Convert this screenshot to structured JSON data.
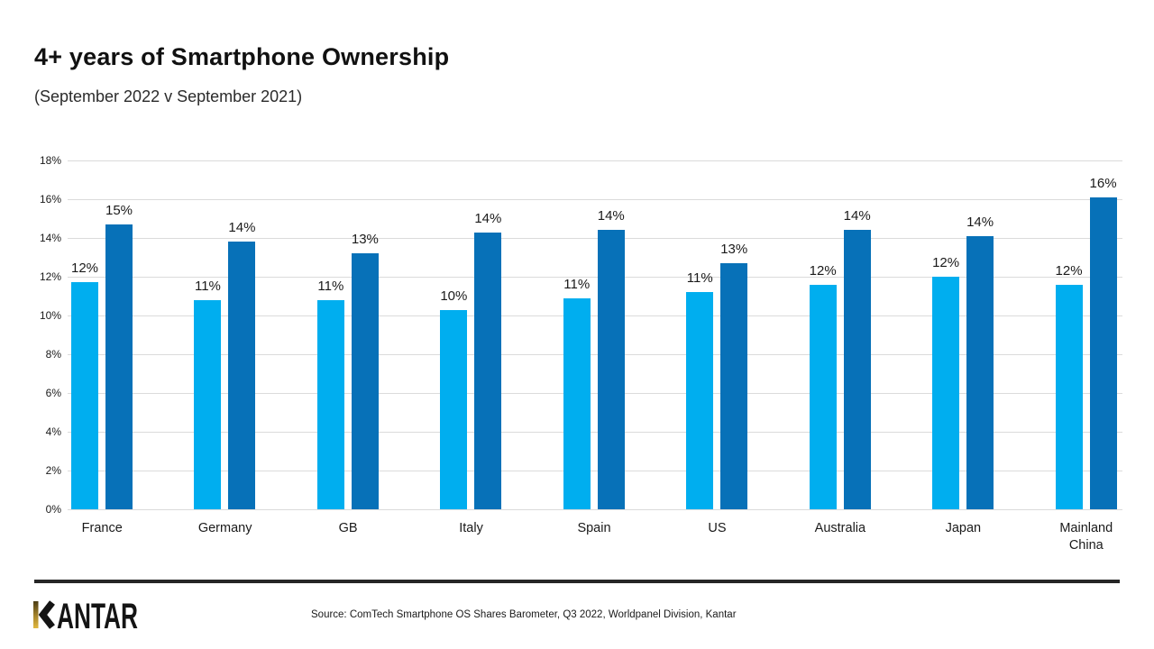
{
  "header": {
    "title": "4+ years of Smartphone Ownership",
    "subtitle": "(September 2022 v September 2021)"
  },
  "footer": {
    "logo_text": "KANTAR",
    "source": "Source: ComTech Smartphone OS Shares Barometer, Q3 2022, Worldpanel Division, Kantar"
  },
  "colors": {
    "light_blue": "#00AEEF",
    "dark_blue": "#0771B8",
    "gridline": "#DBDBDB",
    "text": "#1A1A1A",
    "divider": "#262626",
    "logo_gold": "#C7A13B"
  },
  "chart_data": {
    "type": "bar",
    "title": "4+ years of Smartphone Ownership",
    "subtitle": "(September 2022 v September 2021)",
    "categories": [
      "France",
      "Germany",
      "GB",
      "Italy",
      "Spain",
      "US",
      "Australia",
      "Japan",
      "Mainland\nChina"
    ],
    "series": [
      {
        "id": "light-blue-bars",
        "color": "#00AEEF",
        "labels": [
          "12%",
          "11%",
          "11%",
          "10%",
          "11%",
          "11%",
          "12%",
          "12%",
          "12%"
        ],
        "values": [
          11.7,
          10.8,
          10.8,
          10.3,
          10.9,
          11.2,
          11.6,
          12.0,
          11.6
        ]
      },
      {
        "id": "dark-blue-bars",
        "color": "#0771B8",
        "labels": [
          "15%",
          "14%",
          "13%",
          "14%",
          "14%",
          "13%",
          "14%",
          "14%",
          "16%"
        ],
        "values": [
          14.7,
          13.8,
          13.2,
          14.3,
          14.4,
          12.7,
          14.4,
          14.1,
          16.1
        ]
      }
    ],
    "y_ticks": [
      "0%",
      "2%",
      "4%",
      "6%",
      "8%",
      "10%",
      "12%",
      "14%",
      "16%",
      "18%"
    ],
    "ylim": [
      0,
      18
    ],
    "grid": true,
    "legend": false
  }
}
